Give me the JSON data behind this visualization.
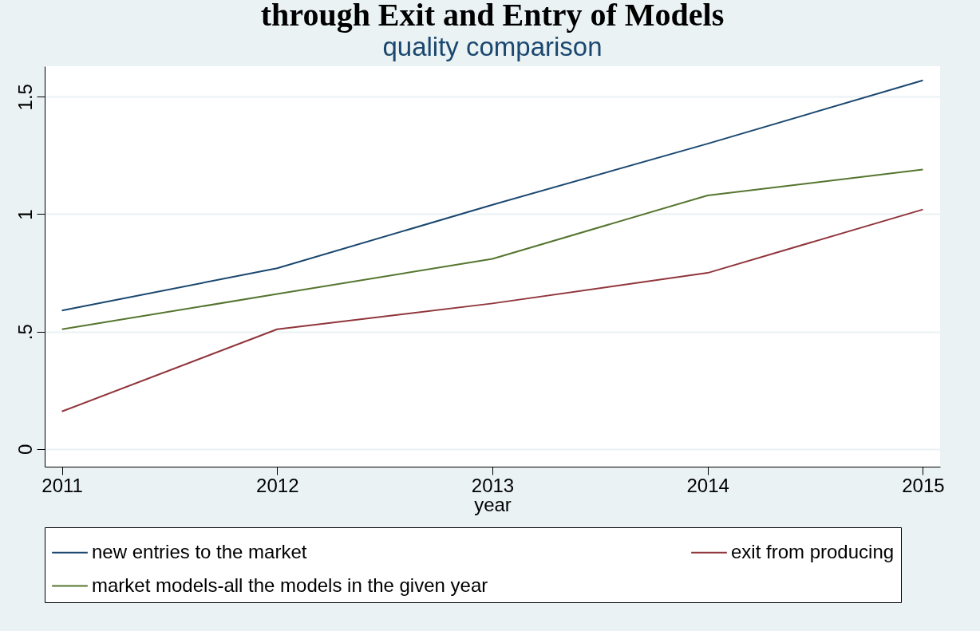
{
  "chart_data": {
    "type": "line",
    "title": "through Exit and Entry of Models",
    "subtitle": "quality comparison",
    "xlabel": "year",
    "x": [
      2011,
      2012,
      2013,
      2014,
      2015
    ],
    "series": [
      {
        "name": "new entries to the market",
        "color": "#1a476f",
        "values": [
          0.59,
          0.77,
          1.04,
          1.3,
          1.57
        ]
      },
      {
        "name": "exit from producing",
        "color": "#90353b",
        "values": [
          0.16,
          0.51,
          0.62,
          0.75,
          1.02
        ]
      },
      {
        "name": "market models-all the models in the given year",
        "color": "#55752f",
        "values": [
          0.51,
          0.66,
          0.81,
          1.08,
          1.19
        ]
      }
    ],
    "xlim": [
      2010.92,
      2015.08
    ],
    "xticks": [
      2011,
      2012,
      2013,
      2014,
      2015
    ],
    "ylim": [
      -0.075,
      1.63
    ],
    "yticks": [
      0,
      {
        "value": 0.5,
        "label": ".5"
      },
      1,
      1.5
    ],
    "grid": "y",
    "legend": "bottom",
    "marker": "none",
    "line_style": "solid"
  }
}
